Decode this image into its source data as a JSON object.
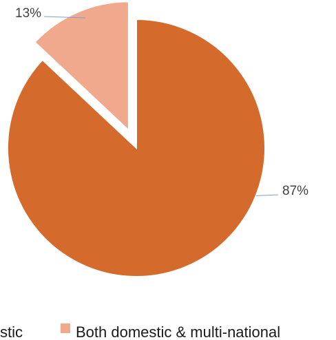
{
  "chart_data": {
    "type": "pie",
    "categories": [
      "Domestic",
      "Both domestic & multi-national"
    ],
    "values": [
      87,
      13
    ],
    "data_labels": [
      "87%",
      "13%"
    ],
    "exploded": [
      false,
      true
    ],
    "legend": {
      "entries": [
        "Domestic",
        "Both domestic & multi-national"
      ],
      "visible_text": [
        "stic",
        "Both domestic & multi-national"
      ],
      "placement": "bottom"
    },
    "colors": [
      "#D46A2B",
      "#F0A98C"
    ],
    "leader_color": "#7F9FCB"
  }
}
